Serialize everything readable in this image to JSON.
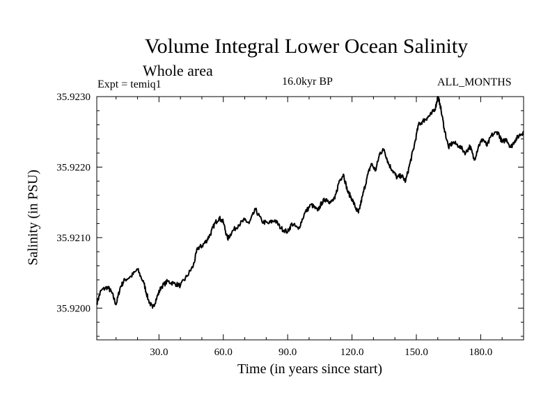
{
  "chart_data": {
    "type": "line",
    "title": "Volume Integral Lower Ocean Salinity",
    "subtitle": "Whole area",
    "experiment_label": "Expt = temiq1",
    "period_label": "16.0kyr BP",
    "months_label": "ALL_MONTHS",
    "xlabel": "Time (in years since start)",
    "ylabel": "Salinity (in PSU)",
    "xlim": [
      1,
      200
    ],
    "ylim": [
      35.91955,
      35.923
    ],
    "xticks": [
      30,
      60,
      90,
      120,
      150,
      180
    ],
    "xtick_labels": [
      "30.0",
      "60.0",
      "90.0",
      "120.0",
      "150.0",
      "180.0"
    ],
    "yticks": [
      35.92,
      35.921,
      35.922,
      35.923
    ],
    "ytick_labels": [
      "35.9200",
      "35.9210",
      "35.9220",
      "35.9230"
    ],
    "series": [
      {
        "name": "Volume integral lower ocean salinity",
        "color": "#000000",
        "x": [
          1,
          3,
          6,
          8,
          10,
          12,
          14,
          17,
          20,
          23,
          25,
          27,
          29,
          31,
          34,
          37,
          40,
          43,
          46,
          48,
          50,
          52,
          54,
          56,
          58,
          60,
          62,
          64,
          67,
          70,
          72,
          75,
          78,
          81,
          84,
          87,
          90,
          92,
          95,
          98,
          101,
          104,
          106,
          108,
          110,
          112,
          114,
          116,
          118,
          120,
          122,
          123,
          125,
          127,
          129,
          131,
          133,
          135,
          137,
          139,
          141,
          143,
          145,
          147,
          149,
          151,
          153,
          155,
          157,
          159,
          160,
          161,
          163,
          165,
          167,
          170,
          173,
          175,
          177,
          179,
          181,
          183,
          185,
          188,
          190,
          192,
          194,
          196,
          198,
          200
        ],
        "values": [
          35.92007,
          35.92025,
          35.9203,
          35.92022,
          35.92005,
          35.9203,
          35.9204,
          35.92045,
          35.92055,
          35.92035,
          35.92012,
          35.92,
          35.92015,
          35.9203,
          35.92038,
          35.92035,
          35.92032,
          35.92045,
          35.9206,
          35.92085,
          35.92088,
          35.92095,
          35.92105,
          35.9212,
          35.92128,
          35.92122,
          35.92098,
          35.92108,
          35.92118,
          35.92125,
          35.9212,
          35.9214,
          35.92123,
          35.9212,
          35.92125,
          35.92113,
          35.92108,
          35.9212,
          35.92112,
          35.92135,
          35.92147,
          35.92138,
          35.9215,
          35.92155,
          35.9215,
          35.92155,
          35.9218,
          35.9219,
          35.92165,
          35.92155,
          35.9214,
          35.92135,
          35.9216,
          35.92185,
          35.92205,
          35.92195,
          35.9222,
          35.92225,
          35.92205,
          35.92195,
          35.92185,
          35.92188,
          35.9218,
          35.92205,
          35.9223,
          35.9226,
          35.92265,
          35.9227,
          35.92275,
          35.92285,
          35.923,
          35.9229,
          35.92255,
          35.92228,
          35.92235,
          35.9223,
          35.9222,
          35.9223,
          35.9221,
          35.9223,
          35.9224,
          35.9223,
          35.92245,
          35.9225,
          35.92235,
          35.9224,
          35.92228,
          35.92238,
          35.92245,
          35.9225
        ]
      }
    ]
  },
  "colors": {
    "line": "#000000",
    "axes": "#000000",
    "background": "#ffffff"
  }
}
